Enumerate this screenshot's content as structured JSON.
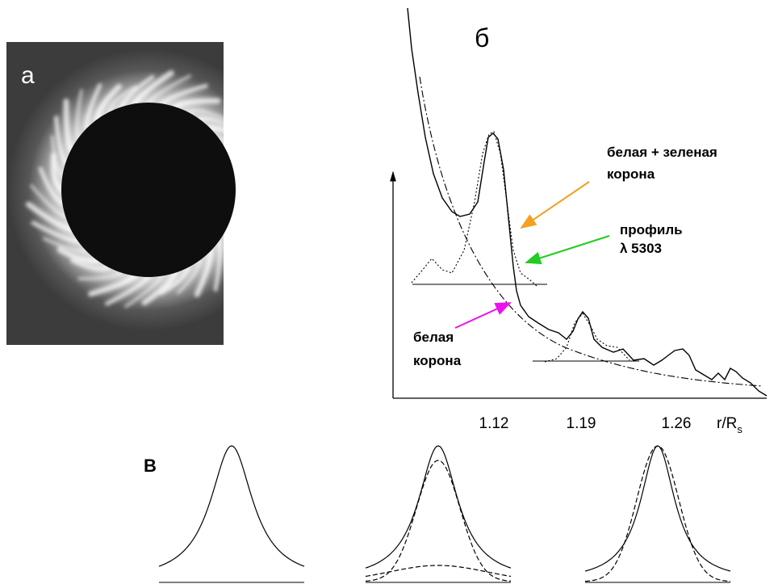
{
  "panel_a": {
    "label": "а"
  },
  "panel_b": {
    "label": "б",
    "annotations": {
      "white_green": [
        "белая + зеленая",
        "корона"
      ],
      "profile": [
        "профиль",
        "λ 5303"
      ],
      "white": [
        "белая",
        "корона"
      ]
    },
    "x_ticks": [
      "1.12",
      "1.19",
      "1.26"
    ],
    "x_axis_label": {
      "main": "r/R",
      "sub": "s"
    }
  },
  "panel_c": {
    "label": "В"
  }
}
